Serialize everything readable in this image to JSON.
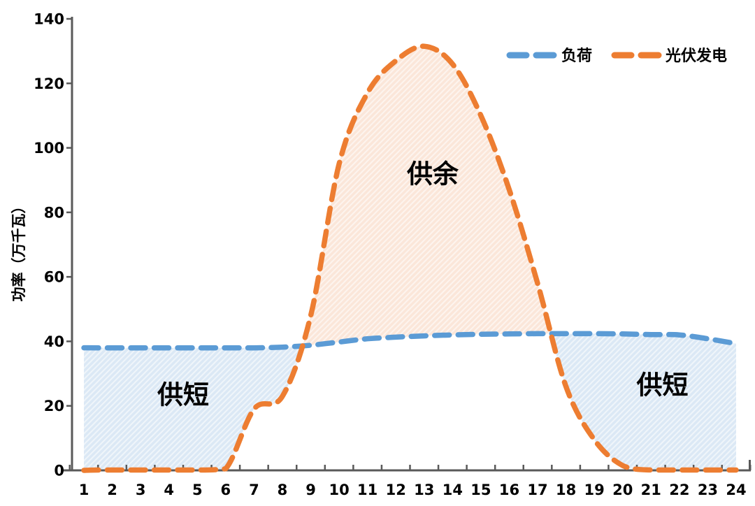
{
  "chart_data": {
    "type": "line",
    "title": "",
    "ylabel": "功率（万千瓦）",
    "xlabel": "",
    "ylim": [
      0,
      140
    ],
    "yticks": [
      0,
      20,
      40,
      60,
      80,
      100,
      120,
      140
    ],
    "xticks": [
      1,
      2,
      3,
      4,
      5,
      6,
      7,
      8,
      9,
      10,
      11,
      12,
      13,
      14,
      15,
      16,
      17,
      18,
      19,
      20,
      21,
      22,
      23,
      24
    ],
    "x": [
      1,
      2,
      3,
      4,
      5,
      6,
      7,
      8,
      9,
      10,
      11,
      12,
      13,
      14,
      15,
      16,
      17,
      18,
      19,
      20,
      21,
      22,
      23,
      24
    ],
    "grid": false,
    "legend_position": "top-right",
    "axis_color": "#595959",
    "hatch": true,
    "series": [
      {
        "name": "负荷",
        "color": "#5B9BD5",
        "line_style": "dashed",
        "values": [
          38,
          38,
          38,
          38,
          38,
          38,
          38,
          38.2,
          38.8,
          39.8,
          40.8,
          41.3,
          41.7,
          42,
          42.2,
          42.3,
          42.4,
          42.4,
          42.4,
          42.3,
          42.1,
          42,
          40.8,
          39.3
        ]
      },
      {
        "name": "光伏发电",
        "color": "#ED7D31",
        "line_style": "dashed",
        "values": [
          0,
          0,
          0,
          0,
          0,
          0.5,
          19,
          23,
          48,
          95,
          117,
          127,
          131.5,
          126,
          110,
          87,
          58,
          26,
          9.5,
          1.5,
          0,
          0,
          0,
          0
        ]
      }
    ],
    "areas": [
      {
        "label": "供短",
        "fill": "#DBE8F5",
        "hours": [
          1,
          8.75
        ],
        "meaning": "load exceeds PV (early morning)"
      },
      {
        "label": "供余",
        "fill": "#FBE6D9",
        "hours": [
          8.75,
          17.5
        ],
        "meaning": "PV exceeds load (midday)"
      },
      {
        "label": "供短",
        "fill": "#DBE8F5",
        "hours": [
          17.5,
          24
        ],
        "meaning": "load exceeds PV (evening)"
      }
    ],
    "annotations": [
      {
        "text": "供余",
        "x_hour": 13.3,
        "y_value": 92
      },
      {
        "text": "供短",
        "x_hour": 4.5,
        "y_value": 23.5
      },
      {
        "text": "供短",
        "x_hour": 21.4,
        "y_value": 26.5
      }
    ]
  }
}
